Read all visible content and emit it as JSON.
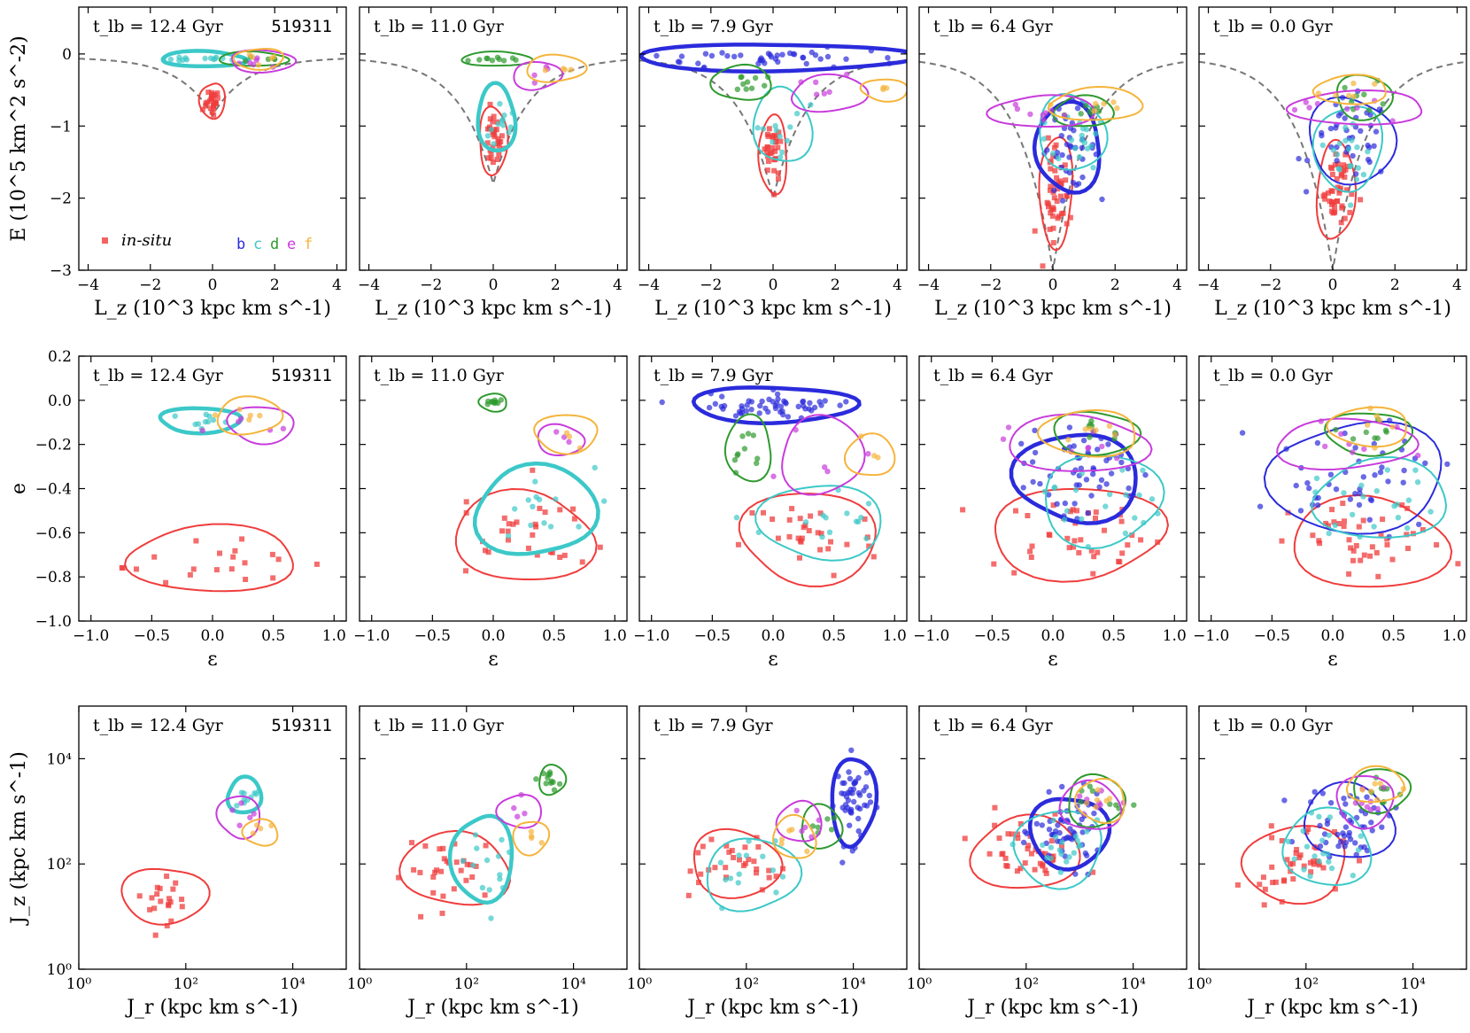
{
  "figure": {
    "run_id": "519311"
  },
  "legend": {
    "insitu_label": "in-situ",
    "groups": [
      "b",
      "c",
      "d",
      "e",
      "f"
    ],
    "colors": {
      "insitu": "#f03c3c",
      "b": "#2b2bdc",
      "c": "#3cc8c8",
      "d": "#2e9a2e",
      "e": "#c83cdc",
      "f": "#f5b43c"
    }
  },
  "columns": [
    {
      "title": "t_lb = 12.4 Gyr"
    },
    {
      "title": "t_lb = 11.0 Gyr"
    },
    {
      "title": "t_lb = 7.9 Gyr"
    },
    {
      "title": "t_lb = 6.4 Gyr"
    },
    {
      "title": "t_lb = 0.0 Gyr"
    }
  ],
  "rows": [
    {
      "xlabel": "L_z (10^3 kpc km s^-1)",
      "ylabel": "E (10^5 km^2 s^-2)",
      "xlim": [
        -4.3,
        4.3
      ],
      "ylim": [
        -3,
        0.65
      ],
      "xticks": [
        "−4",
        "−2",
        "0",
        "2",
        "4"
      ],
      "yticks": [
        "−3",
        "−2",
        "−1",
        "0"
      ]
    },
    {
      "xlabel": "ε",
      "ylabel": "e",
      "xlim": [
        -1.1,
        1.1
      ],
      "ylim": [
        -1.0,
        0.2
      ],
      "xticks": [
        "−1.0",
        "−0.5",
        "0.0",
        "0.5",
        "1.0"
      ],
      "yticks": [
        "−1.0",
        "−0.8",
        "−0.6",
        "−0.4",
        "−0.2",
        "0.0",
        "0.2"
      ]
    },
    {
      "xlabel": "J_r (kpc km s^-1)",
      "ylabel": "J_z (kpc km s^-1)",
      "xlim": [
        1,
        100000
      ],
      "ylim": [
        1,
        100000
      ],
      "scale": "log",
      "xticks": [
        "10⁰",
        "10²",
        "10⁴"
      ],
      "yticks": [
        "10⁰",
        "10²",
        "10⁴"
      ]
    }
  ],
  "chart_data": {
    "type": "scatter",
    "note_on_contours": "groups b–f and in-situ shown as point clouds with density contours in each panel",
    "panels": [
      {
        "row": 0,
        "col": 0,
        "groups": {
          "insitu": {
            "center": [
              0,
              -0.65
            ],
            "spread": [
              0.15,
              0.12
            ],
            "n": 25
          },
          "c": {
            "center": [
              -0.3,
              -0.07
            ],
            "spread": [
              0.8,
              0.02
            ],
            "n": 14
          },
          "e": {
            "center": [
              1.6,
              -0.1
            ],
            "spread": [
              0.6,
              0.05
            ],
            "n": 6
          },
          "f": {
            "center": [
              1.5,
              -0.07
            ],
            "spread": [
              0.4,
              0.05
            ],
            "n": 5
          },
          "d": {
            "center": [
              1.3,
              -0.07
            ],
            "spread": [
              0.6,
              0.02
            ],
            "n": 5
          }
        }
      },
      {
        "row": 0,
        "col": 1,
        "groups": {
          "insitu": {
            "center": [
              0,
              -1.2
            ],
            "spread": [
              0.2,
              0.25
            ],
            "n": 30
          },
          "c": {
            "center": [
              0.1,
              -0.9
            ],
            "spread": [
              0.3,
              0.25
            ],
            "n": 12
          },
          "d": {
            "center": [
              0.1,
              -0.07
            ],
            "spread": [
              0.6,
              0.02
            ],
            "n": 10
          },
          "e": {
            "center": [
              1.4,
              -0.3
            ],
            "spread": [
              0.4,
              0.08
            ],
            "n": 4
          },
          "f": {
            "center": [
              2.0,
              -0.2
            ],
            "spread": [
              0.5,
              0.08
            ],
            "n": 4
          }
        }
      },
      {
        "row": 0,
        "col": 2,
        "groups": {
          "insitu": {
            "center": [
              0,
              -1.4
            ],
            "spread": [
              0.2,
              0.3
            ],
            "n": 30
          },
          "c": {
            "center": [
              0.3,
              -1.0
            ],
            "spread": [
              0.5,
              0.3
            ],
            "n": 12
          },
          "b": {
            "center": [
              0,
              -0.05
            ],
            "spread": [
              2.7,
              0.08
            ],
            "n": 45
          },
          "d": {
            "center": [
              -1.0,
              -0.4
            ],
            "spread": [
              0.5,
              0.12
            ],
            "n": 10
          },
          "e": {
            "center": [
              1.8,
              -0.55
            ],
            "spread": [
              0.7,
              0.12
            ],
            "n": 6
          },
          "f": {
            "center": [
              3.6,
              -0.5
            ],
            "spread": [
              0.4,
              0.05
            ],
            "n": 3
          }
        }
      },
      {
        "row": 0,
        "col": 3,
        "groups": {
          "insitu": {
            "center": [
              0.1,
              -1.9
            ],
            "spread": [
              0.25,
              0.45
            ],
            "n": 45
          },
          "b": {
            "center": [
              0.5,
              -1.3
            ],
            "spread": [
              0.6,
              0.35
            ],
            "n": 40
          },
          "c": {
            "center": [
              0.6,
              -1.1
            ],
            "spread": [
              0.6,
              0.3
            ],
            "n": 20
          },
          "d": {
            "center": [
              1.0,
              -0.8
            ],
            "spread": [
              0.5,
              0.1
            ],
            "n": 8
          },
          "e": {
            "center": [
              -0.3,
              -0.8
            ],
            "spread": [
              1.0,
              0.1
            ],
            "n": 8
          },
          "f": {
            "center": [
              1.4,
              -0.7
            ],
            "spread": [
              0.9,
              0.1
            ],
            "n": 6
          }
        }
      },
      {
        "row": 0,
        "col": 4,
        "groups": {
          "insitu": {
            "center": [
              0.1,
              -1.9
            ],
            "spread": [
              0.3,
              0.4
            ],
            "n": 45
          },
          "b": {
            "center": [
              0.6,
              -1.2
            ],
            "spread": [
              0.8,
              0.35
            ],
            "n": 40
          },
          "c": {
            "center": [
              0.5,
              -1.3
            ],
            "spread": [
              0.6,
              0.35
            ],
            "n": 20
          },
          "d": {
            "center": [
              1.0,
              -0.6
            ],
            "spread": [
              0.5,
              0.15
            ],
            "n": 8
          },
          "e": {
            "center": [
              0.8,
              -0.75
            ],
            "spread": [
              1.4,
              0.1
            ],
            "n": 8
          },
          "f": {
            "center": [
              0.6,
              -0.5
            ],
            "spread": [
              0.7,
              0.08
            ],
            "n": 6
          }
        }
      },
      {
        "row": 1,
        "col": 0,
        "groups": {
          "insitu": {
            "center": [
              0.0,
              -0.72
            ],
            "spread": [
              0.45,
              0.08
            ],
            "n": 20
          },
          "c": {
            "center": [
              -0.1,
              -0.09
            ],
            "spread": [
              0.2,
              0.02
            ],
            "n": 10
          },
          "e": {
            "center": [
              0.4,
              -0.11
            ],
            "spread": [
              0.15,
              0.04
            ],
            "n": 5
          },
          "f": {
            "center": [
              0.3,
              -0.07
            ],
            "spread": [
              0.15,
              0.04
            ],
            "n": 5
          }
        }
      },
      {
        "row": 1,
        "col": 1,
        "groups": {
          "insitu": {
            "center": [
              0.25,
              -0.62
            ],
            "spread": [
              0.35,
              0.12
            ],
            "n": 30
          },
          "c": {
            "center": [
              0.35,
              -0.5
            ],
            "spread": [
              0.3,
              0.12
            ],
            "n": 14
          },
          "d": {
            "center": [
              0.0,
              -0.01
            ],
            "spread": [
              0.05,
              0.01
            ],
            "n": 10
          },
          "e": {
            "center": [
              0.55,
              -0.18
            ],
            "spread": [
              0.1,
              0.03
            ],
            "n": 3
          },
          "f": {
            "center": [
              0.6,
              -0.15
            ],
            "spread": [
              0.15,
              0.04
            ],
            "n": 3
          }
        }
      },
      {
        "row": 1,
        "col": 2,
        "groups": {
          "insitu": {
            "center": [
              0.3,
              -0.62
            ],
            "spread": [
              0.35,
              0.12
            ],
            "n": 30
          },
          "c": {
            "center": [
              0.4,
              -0.55
            ],
            "spread": [
              0.3,
              0.1
            ],
            "n": 14
          },
          "b": {
            "center": [
              0.0,
              -0.02
            ],
            "spread": [
              0.4,
              0.04
            ],
            "n": 55
          },
          "d": {
            "center": [
              -0.2,
              -0.22
            ],
            "spread": [
              0.1,
              0.08
            ],
            "n": 10
          },
          "e": {
            "center": [
              0.4,
              -0.25
            ],
            "spread": [
              0.2,
              0.1
            ],
            "n": 5
          },
          "f": {
            "center": [
              0.8,
              -0.25
            ],
            "spread": [
              0.1,
              0.05
            ],
            "n": 3
          }
        }
      },
      {
        "row": 1,
        "col": 3,
        "groups": {
          "insitu": {
            "center": [
              0.2,
              -0.6
            ],
            "spread": [
              0.45,
              0.12
            ],
            "n": 40
          },
          "b": {
            "center": [
              0.2,
              -0.35
            ],
            "spread": [
              0.3,
              0.12
            ],
            "n": 55
          },
          "c": {
            "center": [
              0.4,
              -0.45
            ],
            "spread": [
              0.3,
              0.12
            ],
            "n": 20
          },
          "d": {
            "center": [
              0.35,
              -0.15
            ],
            "spread": [
              0.2,
              0.05
            ],
            "n": 8
          },
          "e": {
            "center": [
              0.2,
              -0.2
            ],
            "spread": [
              0.35,
              0.07
            ],
            "n": 8
          },
          "f": {
            "center": [
              0.3,
              -0.15
            ],
            "spread": [
              0.25,
              0.05
            ],
            "n": 6
          }
        }
      },
      {
        "row": 1,
        "col": 4,
        "groups": {
          "insitu": {
            "center": [
              0.3,
              -0.65
            ],
            "spread": [
              0.4,
              0.12
            ],
            "n": 40
          },
          "b": {
            "center": [
              0.2,
              -0.35
            ],
            "spread": [
              0.45,
              0.15
            ],
            "n": 45
          },
          "c": {
            "center": [
              0.4,
              -0.45
            ],
            "spread": [
              0.35,
              0.1
            ],
            "n": 20
          },
          "d": {
            "center": [
              0.3,
              -0.15
            ],
            "spread": [
              0.2,
              0.05
            ],
            "n": 8
          },
          "e": {
            "center": [
              0.1,
              -0.2
            ],
            "spread": [
              0.35,
              0.06
            ],
            "n": 8
          },
          "f": {
            "center": [
              0.3,
              -0.12
            ],
            "spread": [
              0.2,
              0.04
            ],
            "n": 6
          }
        }
      },
      {
        "row": 2,
        "col": 0,
        "groups": {
          "insitu": {
            "center": [
              1.6,
              1.4
            ],
            "spread": [
              0.45,
              0.3
            ],
            "n": 20
          },
          "c": {
            "center": [
              3.1,
              3.3
            ],
            "spread": [
              0.15,
              0.15
            ],
            "n": 10
          },
          "e": {
            "center": [
              3.0,
              2.9
            ],
            "spread": [
              0.2,
              0.2
            ],
            "n": 5
          },
          "f": {
            "center": [
              3.4,
              2.6
            ],
            "spread": [
              0.15,
              0.1
            ],
            "n": 4
          }
        }
      },
      {
        "row": 2,
        "col": 1,
        "groups": {
          "insitu": {
            "center": [
              1.8,
              1.9
            ],
            "spread": [
              0.6,
              0.4
            ],
            "n": 30
          },
          "c": {
            "center": [
              2.3,
              2.1
            ],
            "spread": [
              0.3,
              0.5
            ],
            "n": 14
          },
          "d": {
            "center": [
              3.6,
              3.6
            ],
            "spread": [
              0.1,
              0.12
            ],
            "n": 12
          },
          "e": {
            "center": [
              3.0,
              3.0
            ],
            "spread": [
              0.2,
              0.15
            ],
            "n": 4
          },
          "f": {
            "center": [
              3.2,
              2.5
            ],
            "spread": [
              0.15,
              0.15
            ],
            "n": 4
          }
        }
      },
      {
        "row": 2,
        "col": 2,
        "groups": {
          "insitu": {
            "center": [
              1.8,
              2.0
            ],
            "spread": [
              0.5,
              0.35
            ],
            "n": 30
          },
          "c": {
            "center": [
              2.1,
              1.8
            ],
            "spread": [
              0.5,
              0.4
            ],
            "n": 14
          },
          "b": {
            "center": [
              4.0,
              3.2
            ],
            "spread": [
              0.2,
              0.5
            ],
            "n": 50
          },
          "d": {
            "center": [
              3.4,
              2.7
            ],
            "spread": [
              0.2,
              0.2
            ],
            "n": 6
          },
          "e": {
            "center": [
              3.0,
              2.8
            ],
            "spread": [
              0.2,
              0.2
            ],
            "n": 5
          },
          "f": {
            "center": [
              2.9,
              2.5
            ],
            "spread": [
              0.2,
              0.2
            ],
            "n": 5
          }
        }
      },
      {
        "row": 2,
        "col": 3,
        "groups": {
          "insitu": {
            "center": [
              2.0,
              2.2
            ],
            "spread": [
              0.6,
              0.4
            ],
            "n": 40
          },
          "b": {
            "center": [
              2.8,
              2.6
            ],
            "spread": [
              0.4,
              0.4
            ],
            "n": 55
          },
          "c": {
            "center": [
              2.6,
              2.3
            ],
            "spread": [
              0.5,
              0.4
            ],
            "n": 20
          },
          "d": {
            "center": [
              3.3,
              3.2
            ],
            "spread": [
              0.3,
              0.25
            ],
            "n": 8
          },
          "e": {
            "center": [
              3.2,
              3.1
            ],
            "spread": [
              0.3,
              0.25
            ],
            "n": 8
          },
          "f": {
            "center": [
              3.4,
              3.2
            ],
            "spread": [
              0.25,
              0.2
            ],
            "n": 6
          }
        }
      },
      {
        "row": 2,
        "col": 4,
        "groups": {
          "insitu": {
            "center": [
              1.8,
              2.0
            ],
            "spread": [
              0.6,
              0.4
            ],
            "n": 40
          },
          "b": {
            "center": [
              2.8,
              2.8
            ],
            "spread": [
              0.5,
              0.4
            ],
            "n": 50
          },
          "c": {
            "center": [
              2.4,
              2.3
            ],
            "spread": [
              0.5,
              0.4
            ],
            "n": 20
          },
          "d": {
            "center": [
              3.4,
              3.4
            ],
            "spread": [
              0.3,
              0.2
            ],
            "n": 8
          },
          "e": {
            "center": [
              3.1,
              3.2
            ],
            "spread": [
              0.3,
              0.25
            ],
            "n": 8
          },
          "f": {
            "center": [
              3.3,
              3.5
            ],
            "spread": [
              0.3,
              0.15
            ],
            "n": 6
          }
        }
      }
    ]
  }
}
